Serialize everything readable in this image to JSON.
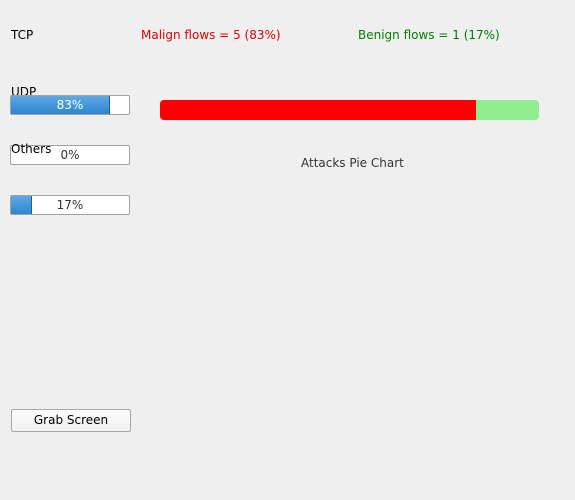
{
  "labels": {
    "tcp": "TCP",
    "udp": "UDP",
    "others": "Others"
  },
  "flows": {
    "malign": {
      "label": "Malign flows = 5 (83%)",
      "count": 5,
      "color": "#ff0000"
    },
    "benign": {
      "label": "Benign flows = 1 (17%)",
      "count": 1,
      "color": "#90ee90"
    }
  },
  "progress": [
    {
      "value": 83,
      "label": "83%"
    },
    {
      "value": 0,
      "label": "0%"
    },
    {
      "value": 17,
      "label": "17%"
    }
  ],
  "chart_title": "Attacks Pie Chart",
  "button": "Grab Screen"
}
